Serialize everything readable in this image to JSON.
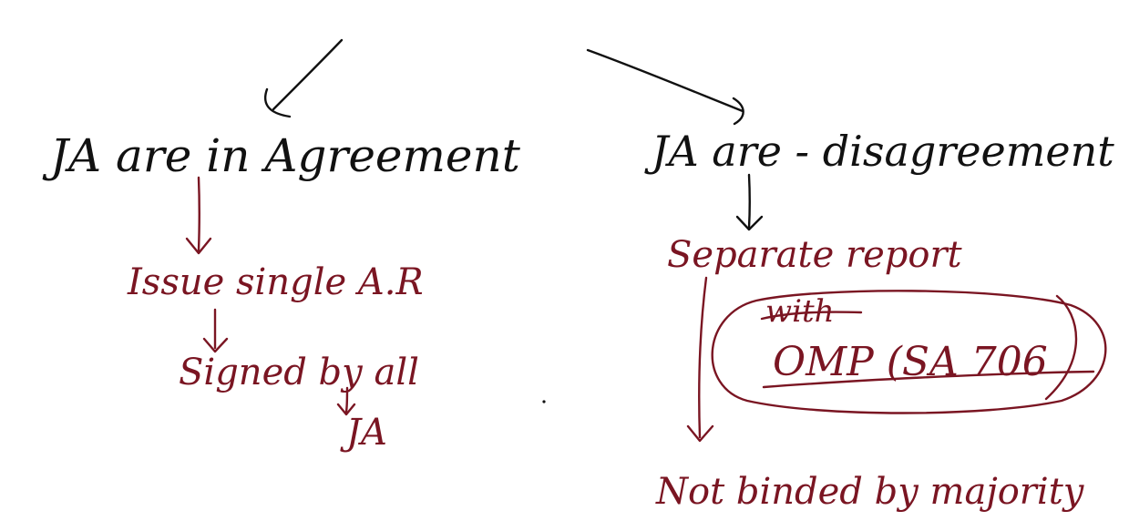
{
  "left_branch": {
    "heading": "JA are in Agreement",
    "step1": "Issue single A.R",
    "step2_line1": "Signed by all",
    "step2_line2": "JA"
  },
  "right_branch": {
    "heading": "JA are - disagreement",
    "step1": "Separate report",
    "oval_line1": "with",
    "oval_line2": "OMP (SA 706",
    "step2": "Not binded by majority"
  },
  "colors": {
    "heading_ink": "#111111",
    "note_ink": "#7a1522",
    "background": "#ffffff"
  }
}
